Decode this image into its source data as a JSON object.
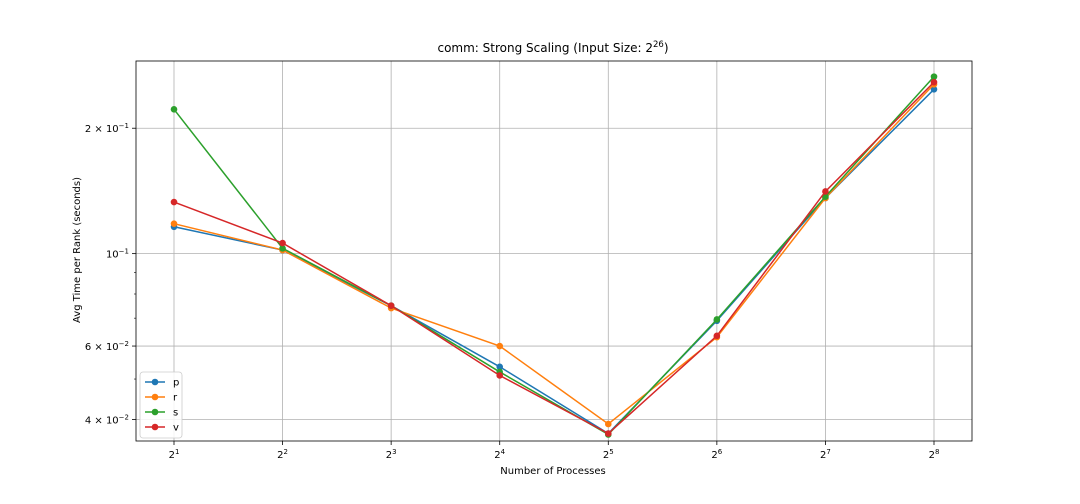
{
  "chart_data": {
    "type": "line",
    "title": "comm: Strong Scaling (Input Size: 2",
    "title_exp": "26",
    "title_suffix": ")",
    "xlabel": "Number of Processes",
    "ylabel": "Avg Time per Rank (seconds)",
    "x": [
      2,
      4,
      8,
      16,
      32,
      64,
      128,
      256
    ],
    "x_tick_labels": [
      {
        "base": "2",
        "exp": "1"
      },
      {
        "base": "2",
        "exp": "2"
      },
      {
        "base": "2",
        "exp": "3"
      },
      {
        "base": "2",
        "exp": "4"
      },
      {
        "base": "2",
        "exp": "5"
      },
      {
        "base": "2",
        "exp": "6"
      },
      {
        "base": "2",
        "exp": "7"
      },
      {
        "base": "2",
        "exp": "8"
      }
    ],
    "x_scale": "log2",
    "y_scale": "log10",
    "ylim": [
      0.0355,
      0.29
    ],
    "y_ticks": [
      {
        "value": 0.2,
        "base": "2 × 10",
        "exp": "−1"
      },
      {
        "value": 0.1,
        "base": "10",
        "exp": "−1"
      },
      {
        "value": 0.06,
        "base": "6 × 10",
        "exp": "−2"
      },
      {
        "value": 0.04,
        "base": "4 × 10",
        "exp": "−2"
      }
    ],
    "grid": true,
    "legend_position": "bottom-left",
    "series": [
      {
        "name": "p",
        "color": "#1f77b4",
        "values": [
          0.116,
          0.102,
          0.075,
          0.0535,
          0.037,
          0.069,
          0.136,
          0.248
        ]
      },
      {
        "name": "r",
        "color": "#ff7f0e",
        "values": [
          0.118,
          0.102,
          0.074,
          0.06,
          0.039,
          0.063,
          0.136,
          0.255
        ]
      },
      {
        "name": "s",
        "color": "#2ca02c",
        "values": [
          0.222,
          0.103,
          0.075,
          0.052,
          0.0368,
          0.0695,
          0.137,
          0.266
        ]
      },
      {
        "name": "v",
        "color": "#d62728",
        "values": [
          0.133,
          0.106,
          0.075,
          0.051,
          0.037,
          0.0635,
          0.141,
          0.258
        ]
      }
    ]
  }
}
